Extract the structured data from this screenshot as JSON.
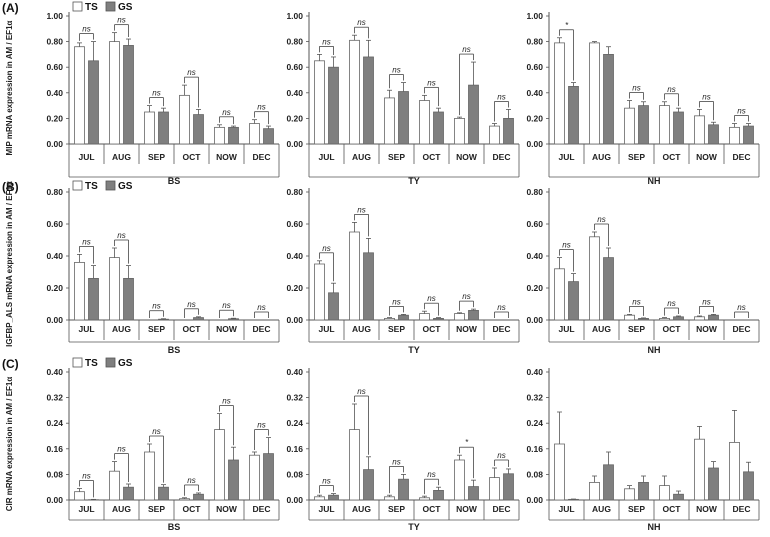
{
  "figure": {
    "panel_labels": [
      "(A)",
      "(B)",
      "(C)"
    ],
    "legend": [
      "TS",
      "GS"
    ],
    "colors": {
      "TS": "#ffffff",
      "GS": "#7f7f7f",
      "axis": "#555555",
      "text": "#222222"
    }
  },
  "chart_data": [
    {
      "type": "bar",
      "row": 0,
      "col": 0,
      "group": "BS",
      "ylabel": "MIP mRNA expression in AM / EF1α",
      "ylim": [
        0,
        1.0
      ],
      "yticks": [
        "0.00",
        "0.20",
        "0.40",
        "0.60",
        "0.80",
        "1.00"
      ],
      "categories": [
        "JUL",
        "AUG",
        "SEP",
        "OCT",
        "NOW",
        "DEC"
      ],
      "series": [
        {
          "name": "TS",
          "values": [
            0.76,
            0.8,
            0.25,
            0.38,
            0.13,
            0.16
          ],
          "errors": [
            0.03,
            0.07,
            0.05,
            0.08,
            0.02,
            0.03
          ]
        },
        {
          "name": "GS",
          "values": [
            0.65,
            0.77,
            0.25,
            0.23,
            0.13,
            0.12
          ],
          "errors": [
            0.15,
            0.05,
            0.03,
            0.04,
            0.01,
            0.02
          ]
        }
      ],
      "annotations": [
        "ns",
        "ns",
        "ns",
        "ns",
        "ns",
        "ns"
      ]
    },
    {
      "type": "bar",
      "row": 0,
      "col": 1,
      "group": "TY",
      "ylabel": "",
      "ylim": [
        0,
        1.0
      ],
      "yticks": [
        "0.00",
        "0.20",
        "0.40",
        "0.60",
        "0.80",
        "1.00"
      ],
      "categories": [
        "JUL",
        "AUG",
        "SEP",
        "OCT",
        "NOW",
        "DEC"
      ],
      "series": [
        {
          "name": "TS",
          "values": [
            0.65,
            0.81,
            0.36,
            0.34,
            0.2,
            0.14
          ],
          "errors": [
            0.05,
            0.04,
            0.06,
            0.04,
            0.01,
            0.02
          ]
        },
        {
          "name": "GS",
          "values": [
            0.6,
            0.68,
            0.41,
            0.25,
            0.46,
            0.2
          ],
          "errors": [
            0.08,
            0.13,
            0.07,
            0.03,
            0.18,
            0.07
          ]
        }
      ],
      "annotations": [
        "ns",
        "ns",
        "ns",
        "ns",
        "ns",
        "ns"
      ]
    },
    {
      "type": "bar",
      "row": 0,
      "col": 2,
      "group": "NH",
      "ylabel": "",
      "ylim": [
        0,
        1.0
      ],
      "yticks": [
        "0.00",
        "0.20",
        "0.40",
        "0.60",
        "0.80",
        "1.00"
      ],
      "categories": [
        "JUL",
        "AUG",
        "SEP",
        "OCT",
        "NOW",
        "DEC"
      ],
      "series": [
        {
          "name": "TS",
          "values": [
            0.79,
            0.79,
            0.28,
            0.3,
            0.22,
            0.13
          ],
          "errors": [
            0.04,
            0.01,
            0.06,
            0.03,
            0.05,
            0.03
          ]
        },
        {
          "name": "GS",
          "values": [
            0.45,
            0.7,
            0.3,
            0.25,
            0.15,
            0.14
          ],
          "errors": [
            0.03,
            0.06,
            0.03,
            0.03,
            0.02,
            0.02
          ]
        }
      ],
      "annotations": [
        "*",
        "",
        "ns",
        "ns",
        "ns",
        "ns"
      ]
    },
    {
      "type": "bar",
      "row": 1,
      "col": 0,
      "group": "BS",
      "ylabel": "IGFBP_ALS mRNA expression in AM / EF1α",
      "ylim": [
        0,
        0.8
      ],
      "yticks": [
        "0.00",
        "0.20",
        "0.40",
        "0.60",
        "0.80"
      ],
      "categories": [
        "JUL",
        "AUG",
        "SEP",
        "OCT",
        "NOW",
        "DEC"
      ],
      "series": [
        {
          "name": "TS",
          "values": [
            0.36,
            0.39,
            0.0,
            0.0,
            0.0,
            0.0
          ],
          "errors": [
            0.05,
            0.06,
            0.0,
            0.0,
            0.0,
            0.0
          ]
        },
        {
          "name": "GS",
          "values": [
            0.26,
            0.26,
            0.005,
            0.015,
            0.008,
            0.0
          ],
          "errors": [
            0.08,
            0.08,
            0.003,
            0.005,
            0.003,
            0.0
          ]
        }
      ],
      "annotations": [
        "ns",
        "ns",
        "ns",
        "ns",
        "ns",
        "ns"
      ]
    },
    {
      "type": "bar",
      "row": 1,
      "col": 1,
      "group": "TY",
      "ylabel": "",
      "ylim": [
        0,
        0.8
      ],
      "yticks": [
        "0.00",
        "0.20",
        "0.40",
        "0.60",
        "0.80"
      ],
      "categories": [
        "JUL",
        "AUG",
        "SEP",
        "OCT",
        "NOW",
        "DEC"
      ],
      "series": [
        {
          "name": "TS",
          "values": [
            0.35,
            0.55,
            0.01,
            0.04,
            0.04,
            0.0
          ],
          "errors": [
            0.02,
            0.06,
            0.005,
            0.015,
            0.005,
            0.0
          ]
        },
        {
          "name": "GS",
          "values": [
            0.17,
            0.42,
            0.03,
            0.01,
            0.06,
            0.0
          ],
          "errors": [
            0.06,
            0.09,
            0.005,
            0.005,
            0.008,
            0.0
          ]
        }
      ],
      "annotations": [
        "ns",
        "ns",
        "ns",
        "ns",
        "ns",
        "ns"
      ]
    },
    {
      "type": "bar",
      "row": 1,
      "col": 2,
      "group": "NH",
      "ylabel": "",
      "ylim": [
        0,
        0.8
      ],
      "yticks": [
        "0.00",
        "0.20",
        "0.40",
        "0.60",
        "0.80"
      ],
      "categories": [
        "JUL",
        "AUG",
        "SEP",
        "OCT",
        "NOW",
        "DEC"
      ],
      "series": [
        {
          "name": "TS",
          "values": [
            0.32,
            0.52,
            0.03,
            0.01,
            0.02,
            0.0
          ],
          "errors": [
            0.07,
            0.03,
            0.005,
            0.005,
            0.005,
            0.0
          ]
        },
        {
          "name": "GS",
          "values": [
            0.24,
            0.39,
            0.01,
            0.02,
            0.03,
            0.0
          ],
          "errors": [
            0.05,
            0.06,
            0.003,
            0.005,
            0.005,
            0.0
          ]
        }
      ],
      "annotations": [
        "ns",
        "ns",
        "ns",
        "ns",
        "ns",
        "ns"
      ]
    },
    {
      "type": "bar",
      "row": 2,
      "col": 0,
      "group": "BS",
      "ylabel": "CIR mRNA expression in AM / EF1α",
      "ylim": [
        0,
        0.4
      ],
      "yticks": [
        "0.00",
        "0.08",
        "0.16",
        "0.24",
        "0.32",
        "0.40"
      ],
      "categories": [
        "JUL",
        "AUG",
        "SEP",
        "OCT",
        "NOW",
        "DEC"
      ],
      "series": [
        {
          "name": "TS",
          "values": [
            0.026,
            0.09,
            0.15,
            0.004,
            0.22,
            0.14
          ],
          "errors": [
            0.01,
            0.03,
            0.025,
            0.003,
            0.05,
            0.01
          ]
        },
        {
          "name": "GS",
          "values": [
            0.001,
            0.04,
            0.04,
            0.018,
            0.125,
            0.145
          ],
          "errors": [
            0.001,
            0.01,
            0.008,
            0.004,
            0.04,
            0.05
          ]
        }
      ],
      "annotations": [
        "ns",
        "ns",
        "ns",
        "ns",
        "ns",
        "ns"
      ]
    },
    {
      "type": "bar",
      "row": 2,
      "col": 1,
      "group": "TY",
      "ylabel": "",
      "ylim": [
        0,
        0.4
      ],
      "yticks": [
        "0.00",
        "0.08",
        "0.16",
        "0.24",
        "0.32",
        "0.40"
      ],
      "categories": [
        "JUL",
        "AUG",
        "SEP",
        "OCT",
        "NOW",
        "DEC"
      ],
      "series": [
        {
          "name": "TS",
          "values": [
            0.01,
            0.22,
            0.01,
            0.007,
            0.125,
            0.07
          ],
          "errors": [
            0.005,
            0.08,
            0.005,
            0.005,
            0.015,
            0.03
          ]
        },
        {
          "name": "GS",
          "values": [
            0.015,
            0.095,
            0.065,
            0.03,
            0.042,
            0.082
          ],
          "errors": [
            0.005,
            0.04,
            0.015,
            0.01,
            0.02,
            0.015
          ]
        }
      ],
      "annotations": [
        "ns",
        "ns",
        "ns",
        "ns",
        "*",
        "ns"
      ]
    },
    {
      "type": "bar",
      "row": 2,
      "col": 2,
      "group": "NH",
      "ylabel": "",
      "ylim": [
        0,
        0.4
      ],
      "yticks": [
        "0.00",
        "0.08",
        "0.16",
        "0.24",
        "0.32",
        "0.40"
      ],
      "categories": [
        "JUL",
        "AUG",
        "SEP",
        "OCT",
        "NOW",
        "DEC"
      ],
      "series": [
        {
          "name": "TS",
          "values": [
            0.175,
            0.055,
            0.035,
            0.045,
            0.19,
            0.18
          ],
          "errors": [
            0.1,
            0.02,
            0.01,
            0.03,
            0.04,
            0.1
          ]
        },
        {
          "name": "GS",
          "values": [
            0.002,
            0.11,
            0.055,
            0.018,
            0.1,
            0.088
          ],
          "errors": [
            0.001,
            0.04,
            0.02,
            0.01,
            0.02,
            0.03
          ]
        }
      ],
      "annotations": [
        "",
        "",
        "",
        "",
        "",
        ""
      ]
    }
  ]
}
